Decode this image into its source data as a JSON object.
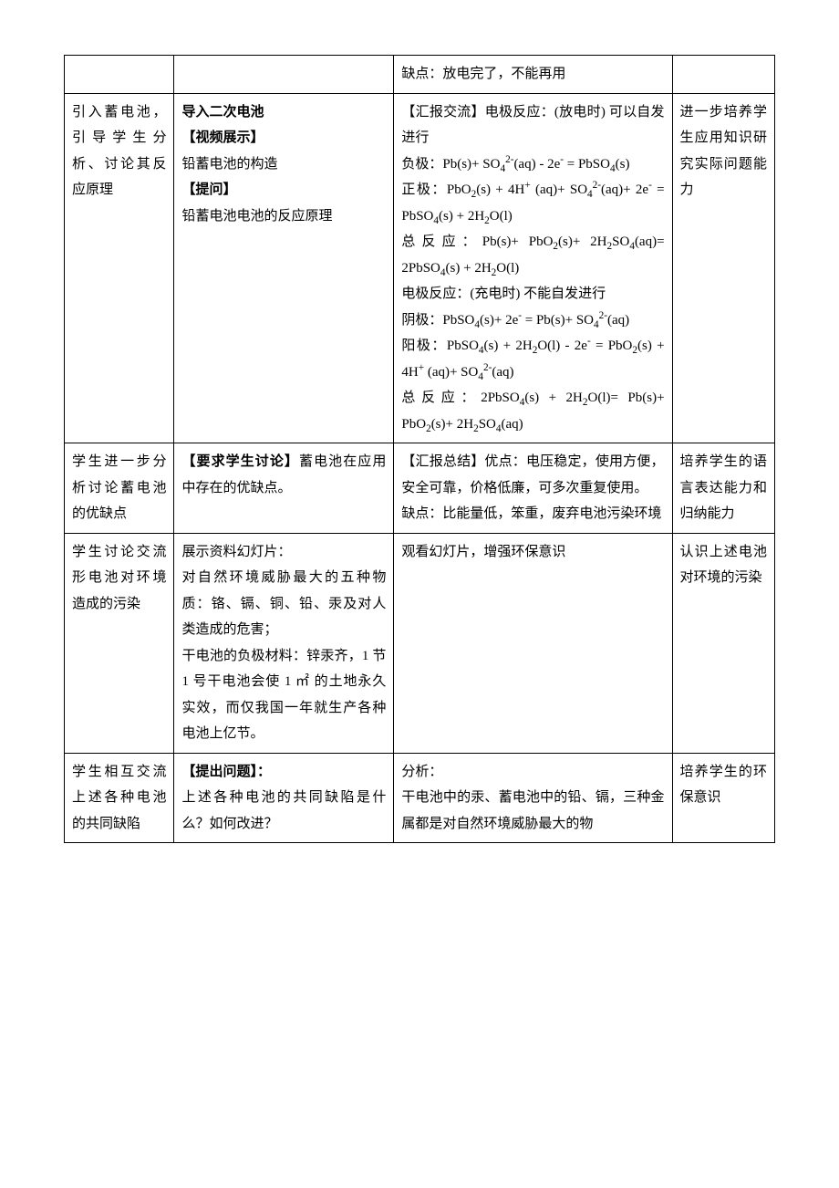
{
  "table": {
    "border_color": "#000000",
    "background_color": "#ffffff",
    "text_color": "#000000",
    "font_size_pt": 11,
    "line_height": 1.9,
    "column_widths_pct": [
      15,
      30,
      38,
      14
    ],
    "rows": [
      {
        "c1": "",
        "c2": "",
        "c3_plain": "缺点：放电完了，不能再用",
        "c4": ""
      },
      {
        "c1": "引入蓄电池，引导学生分析、讨论其反应原理",
        "c2_parts": [
          {
            "text": "导入二次电池",
            "bold": true
          },
          {
            "text": "【视频展示】",
            "bold": true
          },
          {
            "text": "铅蓄电池的构造",
            "bold": false
          },
          {
            "text": "【提问】",
            "bold": true
          },
          {
            "text": "铅蓄电池电池的反应原理",
            "bold": false
          }
        ],
        "c3_lead": "【汇报交流】电极反应：(放电时) 可以自发进行",
        "c3_formulas": [
          "负极：Pb(s)+ SO₄²⁻(aq) - 2e⁻ = PbSO₄(s)",
          "正极：PbO₂(s) + 4H⁺ (aq)+ SO₄²⁻(aq)+ 2e⁻ = PbSO₄(s) + 2H₂O(l)",
          "总反应：Pb(s)+ PbO₂(s)+ 2H₂SO₄(aq)= 2PbSO₄(s) + 2H₂O(l)",
          "电极反应：(充电时) 不能自发进行",
          "阴极：PbSO₄(s)+ 2e⁻ = Pb(s)+ SO₄²⁻(aq)",
          "阳极：PbSO₄(s) + 2H₂O(l) - 2e⁻ = PbO₂(s) + 4H⁺ (aq)+ SO₄²⁻(aq)",
          "总反应：2PbSO₄(s) + 2H₂O(l)= Pb(s)+ PbO₂(s)+ 2H₂SO₄(aq)"
        ],
        "c4": "进一步培养学生应用知识研究实际问题能力"
      },
      {
        "c1": "学生进一步分析讨论蓄电池的优缺点",
        "c2_parts": [
          {
            "text": "【要求学生讨论】",
            "bold": true
          },
          {
            "text": "蓄电池在应用中存在的优缺点。",
            "bold": false,
            "inline": true
          }
        ],
        "c3_plain": "【汇报总结】优点：电压稳定，使用方便，安全可靠，价格低廉，可多次重复使用。\n缺点：比能量低，笨重，废弃电池污染环境",
        "c4": "培养学生的语言表达能力和归纳能力"
      },
      {
        "c1": "学生讨论交流形电池对环境造成的污染",
        "c2_plain": "展示资料幻灯片：\n对自然环境威胁最大的五种物质：铬、镉、铜、铅、汞及对人类造成的危害；\n干电池的负极材料：锌汞齐，1 节 1 号干电池会使 1 ㎡ 的土地永久实效，而仅我国一年就生产各种电池上亿节。",
        "c3_plain": "观看幻灯片，增强环保意识",
        "c4": "认识上述电池对环境的污染"
      },
      {
        "c1": "学生相互交流上述各种电池的共同缺陷",
        "c2_parts": [
          {
            "text": "【提出问题】：",
            "bold": true
          },
          {
            "text": "上述各种电池的共同缺陷是什么？如何改进？",
            "bold": false
          }
        ],
        "c3_plain": "分析：\n干电池中的汞、蓄电池中的铅、镉，三种金属都是对自然环境威胁最大的物",
        "c4": "培养学生的环保意识"
      }
    ]
  }
}
